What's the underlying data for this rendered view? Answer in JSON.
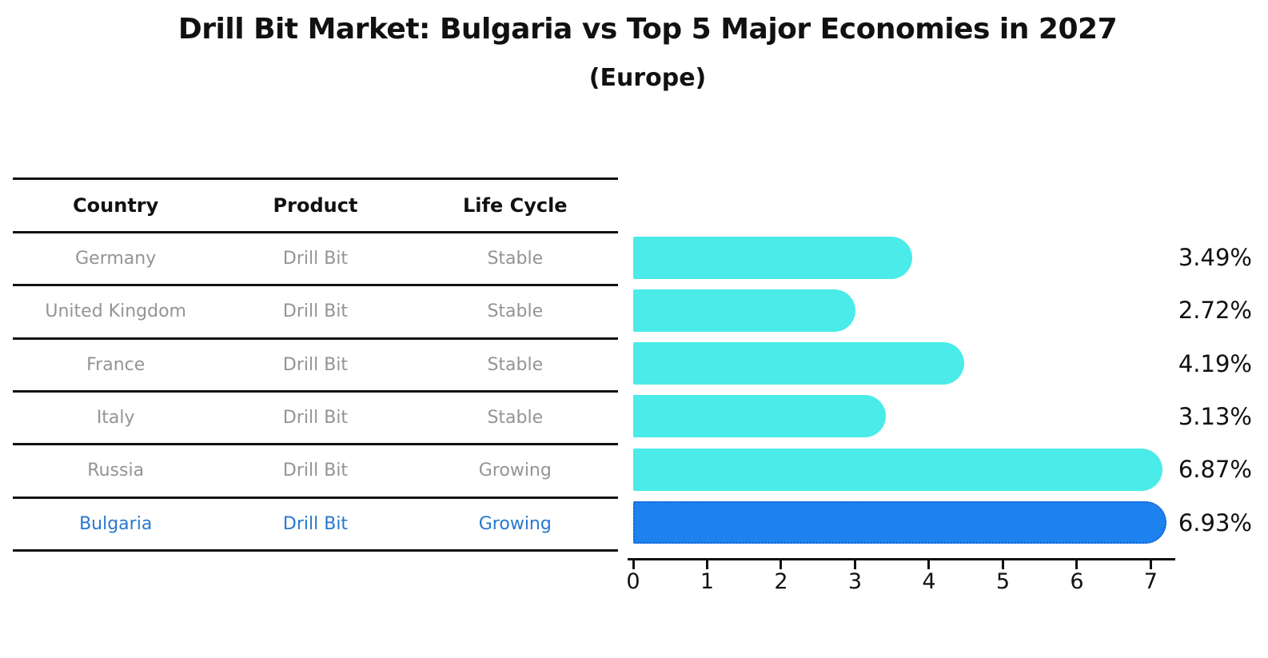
{
  "title": "Drill Bit Market: Bulgaria vs Top 5 Major Economies in 2027",
  "subtitle": "(Europe)",
  "table": {
    "headers": [
      "Country",
      "Product",
      "Life Cycle"
    ],
    "rows": [
      {
        "country": "Germany",
        "product": "Drill Bit",
        "life_cycle": "Stable",
        "highlight": false
      },
      {
        "country": "United Kingdom",
        "product": "Drill Bit",
        "life_cycle": "Stable",
        "highlight": false
      },
      {
        "country": "France",
        "product": "Drill Bit",
        "life_cycle": "Stable",
        "highlight": false
      },
      {
        "country": "Italy",
        "product": "Drill Bit",
        "life_cycle": "Stable",
        "highlight": false
      },
      {
        "country": "Russia",
        "product": "Drill Bit",
        "life_cycle": "Growing",
        "highlight": false
      },
      {
        "country": "Bulgaria",
        "product": "Drill Bit",
        "life_cycle": "Growing",
        "highlight": true
      }
    ]
  },
  "chart_data": {
    "type": "bar",
    "orientation": "horizontal",
    "title": "Drill Bit Market: Bulgaria vs Top 5 Major Economies in 2027",
    "subtitle": "(Europe)",
    "categories": [
      "Germany",
      "United Kingdom",
      "France",
      "Italy",
      "Russia",
      "Bulgaria"
    ],
    "values": [
      3.49,
      2.72,
      4.19,
      3.13,
      6.87,
      6.93
    ],
    "value_labels": [
      "3.49%",
      "2.72%",
      "4.19%",
      "3.13%",
      "6.87%",
      "6.93%"
    ],
    "highlight_index": 5,
    "x_ticks": [
      0,
      1,
      2,
      3,
      4,
      5,
      6,
      7
    ],
    "xlim": [
      0,
      7.32
    ],
    "grid": false,
    "legend": false,
    "bar_color": "#4AEBE8",
    "highlight_bar_color": "#1E82EE",
    "highlight_border_color": "#1565D8"
  },
  "colors": {
    "row_text": "#949494",
    "highlight_text": "#2878CE",
    "header_text": "#111111",
    "axis": "#111111",
    "background": "#ffffff"
  }
}
